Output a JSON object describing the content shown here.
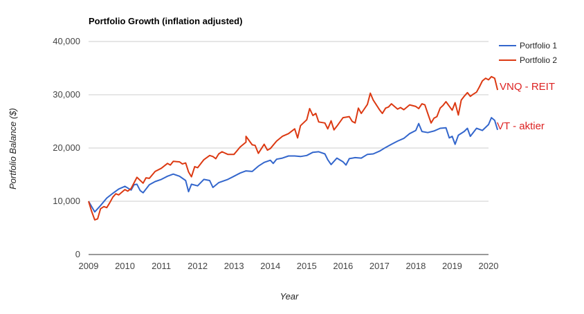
{
  "chart_data": {
    "type": "line",
    "title": "Portfolio Growth (inflation adjusted)",
    "xlabel": "Year",
    "ylabel": "Portfolio Balance ($)",
    "x_ticks": [
      "2009",
      "2010",
      "2011",
      "2012",
      "2013",
      "2014",
      "2015",
      "2016",
      "2017",
      "2018",
      "2019",
      "2020"
    ],
    "y_ticks": [
      "0",
      "10,000",
      "20,000",
      "30,000",
      "40,000"
    ],
    "xlim": [
      2009,
      2020
    ],
    "ylim": [
      0,
      40000
    ],
    "grid": true,
    "legend_position": "right",
    "annotations": [
      {
        "text": "VNQ - REIT",
        "color": "#dd2222"
      },
      {
        "text": "VT - aktier",
        "color": "#dd2222"
      }
    ],
    "series": [
      {
        "name": "Portfolio 1",
        "color": "#3366cc",
        "points": [
          [
            2009.0,
            10000
          ],
          [
            2009.17,
            8000
          ],
          [
            2009.33,
            9200
          ],
          [
            2009.5,
            10600
          ],
          [
            2009.67,
            11500
          ],
          [
            2009.83,
            12300
          ],
          [
            2010.0,
            12800
          ],
          [
            2010.17,
            12100
          ],
          [
            2010.25,
            13100
          ],
          [
            2010.33,
            13200
          ],
          [
            2010.42,
            12000
          ],
          [
            2010.5,
            11600
          ],
          [
            2010.67,
            13100
          ],
          [
            2010.83,
            13700
          ],
          [
            2011.0,
            14100
          ],
          [
            2011.17,
            14700
          ],
          [
            2011.33,
            15100
          ],
          [
            2011.5,
            14700
          ],
          [
            2011.67,
            13900
          ],
          [
            2011.75,
            11800
          ],
          [
            2011.83,
            13200
          ],
          [
            2012.0,
            12900
          ],
          [
            2012.17,
            14100
          ],
          [
            2012.33,
            13900
          ],
          [
            2012.42,
            12600
          ],
          [
            2012.58,
            13500
          ],
          [
            2012.83,
            14100
          ],
          [
            2013.0,
            14700
          ],
          [
            2013.17,
            15300
          ],
          [
            2013.33,
            15700
          ],
          [
            2013.5,
            15600
          ],
          [
            2013.67,
            16600
          ],
          [
            2013.83,
            17300
          ],
          [
            2014.0,
            17700
          ],
          [
            2014.08,
            17100
          ],
          [
            2014.17,
            17900
          ],
          [
            2014.33,
            18100
          ],
          [
            2014.5,
            18500
          ],
          [
            2014.67,
            18500
          ],
          [
            2014.83,
            18400
          ],
          [
            2015.0,
            18600
          ],
          [
            2015.17,
            19200
          ],
          [
            2015.33,
            19300
          ],
          [
            2015.5,
            18900
          ],
          [
            2015.58,
            17800
          ],
          [
            2015.67,
            16900
          ],
          [
            2015.83,
            18100
          ],
          [
            2016.0,
            17400
          ],
          [
            2016.08,
            16800
          ],
          [
            2016.17,
            18000
          ],
          [
            2016.33,
            18200
          ],
          [
            2016.5,
            18100
          ],
          [
            2016.67,
            18800
          ],
          [
            2016.83,
            18900
          ],
          [
            2017.0,
            19400
          ],
          [
            2017.17,
            20100
          ],
          [
            2017.33,
            20700
          ],
          [
            2017.5,
            21300
          ],
          [
            2017.67,
            21800
          ],
          [
            2017.83,
            22700
          ],
          [
            2018.0,
            23300
          ],
          [
            2018.08,
            24600
          ],
          [
            2018.17,
            23100
          ],
          [
            2018.33,
            22900
          ],
          [
            2018.5,
            23200
          ],
          [
            2018.67,
            23700
          ],
          [
            2018.83,
            23800
          ],
          [
            2018.92,
            21900
          ],
          [
            2019.0,
            22200
          ],
          [
            2019.08,
            20700
          ],
          [
            2019.17,
            22400
          ],
          [
            2019.33,
            23100
          ],
          [
            2019.42,
            23700
          ],
          [
            2019.5,
            22200
          ],
          [
            2019.67,
            23700
          ],
          [
            2019.83,
            23300
          ],
          [
            2020.0,
            24400
          ],
          [
            2020.08,
            25700
          ],
          [
            2020.17,
            25200
          ],
          [
            2020.25,
            23400
          ]
        ]
      },
      {
        "name": "Portfolio 2",
        "color": "#dc3912",
        "points": [
          [
            2009.0,
            10000
          ],
          [
            2009.08,
            8200
          ],
          [
            2009.17,
            6500
          ],
          [
            2009.25,
            6700
          ],
          [
            2009.33,
            8600
          ],
          [
            2009.42,
            9000
          ],
          [
            2009.5,
            8800
          ],
          [
            2009.58,
            9700
          ],
          [
            2009.67,
            10800
          ],
          [
            2009.75,
            11400
          ],
          [
            2009.83,
            11200
          ],
          [
            2010.0,
            12200
          ],
          [
            2010.08,
            11900
          ],
          [
            2010.17,
            12400
          ],
          [
            2010.33,
            14500
          ],
          [
            2010.5,
            13400
          ],
          [
            2010.58,
            14400
          ],
          [
            2010.67,
            14300
          ],
          [
            2010.83,
            15600
          ],
          [
            2011.0,
            16200
          ],
          [
            2011.17,
            17100
          ],
          [
            2011.25,
            16800
          ],
          [
            2011.33,
            17500
          ],
          [
            2011.5,
            17400
          ],
          [
            2011.58,
            17000
          ],
          [
            2011.67,
            17200
          ],
          [
            2011.75,
            15500
          ],
          [
            2011.83,
            14600
          ],
          [
            2011.92,
            16500
          ],
          [
            2012.0,
            16300
          ],
          [
            2012.17,
            17800
          ],
          [
            2012.33,
            18600
          ],
          [
            2012.42,
            18400
          ],
          [
            2012.5,
            18000
          ],
          [
            2012.58,
            18900
          ],
          [
            2012.67,
            19300
          ],
          [
            2012.83,
            18800
          ],
          [
            2013.0,
            18800
          ],
          [
            2013.17,
            20200
          ],
          [
            2013.33,
            21100
          ],
          [
            2013.33,
            22200
          ],
          [
            2013.5,
            20600
          ],
          [
            2013.58,
            20500
          ],
          [
            2013.67,
            19000
          ],
          [
            2013.83,
            20700
          ],
          [
            2013.92,
            19600
          ],
          [
            2014.0,
            19900
          ],
          [
            2014.17,
            21300
          ],
          [
            2014.33,
            22200
          ],
          [
            2014.5,
            22700
          ],
          [
            2014.67,
            23600
          ],
          [
            2014.75,
            21900
          ],
          [
            2014.83,
            24200
          ],
          [
            2015.0,
            25300
          ],
          [
            2015.08,
            27400
          ],
          [
            2015.17,
            26100
          ],
          [
            2015.25,
            26500
          ],
          [
            2015.33,
            24900
          ],
          [
            2015.5,
            24700
          ],
          [
            2015.58,
            23600
          ],
          [
            2015.67,
            25100
          ],
          [
            2015.75,
            23400
          ],
          [
            2015.83,
            24100
          ],
          [
            2016.0,
            25700
          ],
          [
            2016.17,
            25900
          ],
          [
            2016.25,
            25000
          ],
          [
            2016.33,
            24700
          ],
          [
            2016.42,
            27500
          ],
          [
            2016.5,
            26500
          ],
          [
            2016.67,
            28200
          ],
          [
            2016.75,
            30300
          ],
          [
            2016.83,
            29000
          ],
          [
            2017.0,
            27200
          ],
          [
            2017.08,
            26500
          ],
          [
            2017.17,
            27500
          ],
          [
            2017.25,
            27700
          ],
          [
            2017.33,
            28300
          ],
          [
            2017.5,
            27300
          ],
          [
            2017.58,
            27600
          ],
          [
            2017.67,
            27200
          ],
          [
            2017.83,
            28100
          ],
          [
            2018.0,
            27800
          ],
          [
            2018.08,
            27400
          ],
          [
            2018.17,
            28300
          ],
          [
            2018.25,
            28100
          ],
          [
            2018.33,
            26500
          ],
          [
            2018.42,
            24700
          ],
          [
            2018.5,
            25600
          ],
          [
            2018.58,
            25900
          ],
          [
            2018.67,
            27500
          ],
          [
            2018.75,
            28000
          ],
          [
            2018.83,
            28700
          ],
          [
            2019.0,
            27100
          ],
          [
            2019.08,
            28500
          ],
          [
            2019.17,
            26200
          ],
          [
            2019.25,
            29000
          ],
          [
            2019.33,
            29700
          ],
          [
            2019.42,
            30400
          ],
          [
            2019.5,
            29700
          ],
          [
            2019.58,
            30100
          ],
          [
            2019.67,
            30500
          ],
          [
            2019.75,
            31500
          ],
          [
            2019.83,
            32600
          ],
          [
            2019.92,
            33100
          ],
          [
            2020.0,
            32800
          ],
          [
            2020.08,
            33400
          ],
          [
            2020.17,
            33100
          ],
          [
            2020.25,
            30900
          ]
        ]
      }
    ]
  }
}
